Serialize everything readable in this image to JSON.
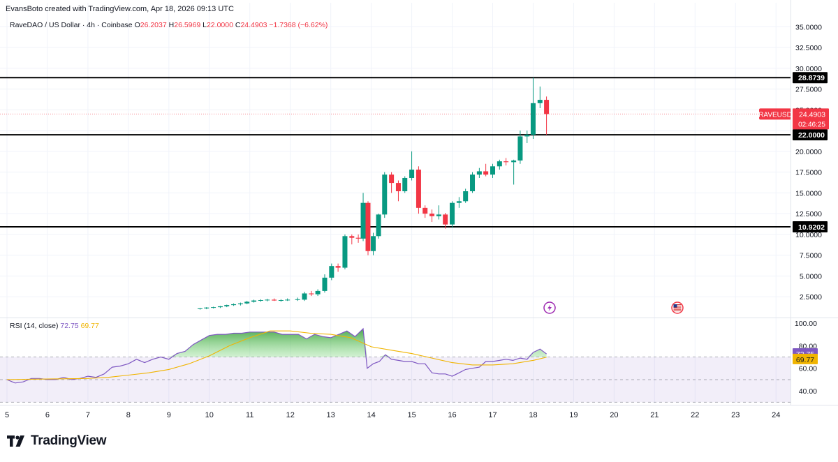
{
  "header": {
    "created_by": "EvansBoto created with TradingView.com, Apr 18, 2026 09:13 UTC"
  },
  "symbol": {
    "title": "RaveDAO / US Dollar · 4h · Coinbase",
    "o_label": "O",
    "o": "26.2037",
    "h_label": "H",
    "h": "26.5969",
    "l_label": "L",
    "l": "22.0000",
    "c_label": "C",
    "c": "24.4903",
    "change": "−1.7368 (−6.62%)"
  },
  "rsi": {
    "label": "RSI (14, close)",
    "value": "72.75",
    "ma_value": "69.77"
  },
  "colors": {
    "up": "#089981",
    "down": "#f23645",
    "rsi": "#7e57c2",
    "rsi_ma": "#f0b400",
    "level_line": "#000000",
    "badge": "#f23645"
  },
  "icons": {
    "events": [
      "lightning-event-icon",
      "us-flag-event-icon"
    ]
  },
  "footer": {
    "brand": "TradingView"
  },
  "chart_data": [
    {
      "type": "candlestick",
      "ylim": [
        0,
        36.2
      ],
      "y_ticks": [
        "2.5000",
        "5.0000",
        "7.5000",
        "10.0000",
        "12.5000",
        "15.0000",
        "17.5000",
        "20.0000",
        "22.5000",
        "25.0000",
        "27.5000",
        "30.0000",
        "32.5000",
        "35.0000"
      ],
      "x_ticks": [
        "5",
        "6",
        "7",
        "8",
        "9",
        "10",
        "11",
        "12",
        "13",
        "14",
        "15",
        "16",
        "17",
        "18",
        "19",
        "20",
        "21",
        "22",
        "23",
        "24"
      ],
      "xlim": [
        5,
        24.1
      ],
      "horizontal_levels": [
        {
          "value": 28.8739,
          "label": "28.8739"
        },
        {
          "value": 22.0,
          "label": "22.0000"
        },
        {
          "value": 10.9202,
          "label": "10.9202"
        }
      ],
      "last_price": {
        "symbol": "RAVEUSD",
        "price": "24.4903",
        "countdown": "02:46:25",
        "value": 24.4903
      },
      "candles": [
        {
          "x": 9.77,
          "o": 1.05,
          "h": 1.15,
          "l": 0.95,
          "c": 1.1
        },
        {
          "x": 9.93,
          "o": 1.1,
          "h": 1.25,
          "l": 1.0,
          "c": 1.2
        },
        {
          "x": 10.1,
          "o": 1.2,
          "h": 1.3,
          "l": 1.1,
          "c": 1.25
        },
        {
          "x": 10.27,
          "o": 1.25,
          "h": 1.4,
          "l": 1.15,
          "c": 1.35
        },
        {
          "x": 10.43,
          "o": 1.35,
          "h": 1.55,
          "l": 1.25,
          "c": 1.5
        },
        {
          "x": 10.6,
          "o": 1.5,
          "h": 1.7,
          "l": 1.4,
          "c": 1.6
        },
        {
          "x": 10.77,
          "o": 1.6,
          "h": 1.8,
          "l": 1.45,
          "c": 1.7
        },
        {
          "x": 10.93,
          "o": 1.7,
          "h": 2.0,
          "l": 1.6,
          "c": 1.9
        },
        {
          "x": 11.1,
          "o": 1.9,
          "h": 2.15,
          "l": 1.8,
          "c": 2.05
        },
        {
          "x": 11.27,
          "o": 2.05,
          "h": 2.2,
          "l": 1.9,
          "c": 2.1
        },
        {
          "x": 11.43,
          "o": 2.1,
          "h": 2.25,
          "l": 1.95,
          "c": 2.15
        },
        {
          "x": 11.6,
          "o": 2.15,
          "h": 2.3,
          "l": 2.0,
          "c": 2.05
        },
        {
          "x": 11.77,
          "o": 2.05,
          "h": 2.2,
          "l": 1.9,
          "c": 2.1
        },
        {
          "x": 11.93,
          "o": 2.1,
          "h": 2.3,
          "l": 2.0,
          "c": 2.15
        },
        {
          "x": 12.18,
          "o": 2.15,
          "h": 2.4,
          "l": 2.0,
          "c": 2.2
        },
        {
          "x": 12.35,
          "o": 2.15,
          "h": 3.1,
          "l": 2.0,
          "c": 2.9
        },
        {
          "x": 12.52,
          "o": 2.9,
          "h": 3.2,
          "l": 2.6,
          "c": 2.8
        },
        {
          "x": 12.68,
          "o": 2.8,
          "h": 3.4,
          "l": 2.6,
          "c": 3.2
        },
        {
          "x": 12.85,
          "o": 3.2,
          "h": 5.2,
          "l": 3.0,
          "c": 4.8
        },
        {
          "x": 13.02,
          "o": 4.8,
          "h": 6.5,
          "l": 4.5,
          "c": 6.2
        },
        {
          "x": 13.18,
          "o": 6.2,
          "h": 6.5,
          "l": 5.5,
          "c": 6.0
        },
        {
          "x": 13.35,
          "o": 6.0,
          "h": 10.0,
          "l": 5.8,
          "c": 9.8
        },
        {
          "x": 13.52,
          "o": 9.8,
          "h": 10.0,
          "l": 8.8,
          "c": 9.6
        },
        {
          "x": 13.68,
          "o": 9.6,
          "h": 10.0,
          "l": 9.0,
          "c": 9.5
        },
        {
          "x": 13.8,
          "o": 9.5,
          "h": 15.0,
          "l": 9.2,
          "c": 13.8
        },
        {
          "x": 13.92,
          "o": 13.8,
          "h": 14.0,
          "l": 7.5,
          "c": 8.0
        },
        {
          "x": 14.05,
          "o": 8.0,
          "h": 10.2,
          "l": 7.5,
          "c": 9.8
        },
        {
          "x": 14.18,
          "o": 9.8,
          "h": 12.5,
          "l": 9.5,
          "c": 12.4
        },
        {
          "x": 14.33,
          "o": 12.4,
          "h": 17.5,
          "l": 12.0,
          "c": 17.2
        },
        {
          "x": 14.5,
          "o": 17.2,
          "h": 17.5,
          "l": 15.0,
          "c": 16.2
        },
        {
          "x": 14.67,
          "o": 16.2,
          "h": 16.5,
          "l": 14.0,
          "c": 15.2
        },
        {
          "x": 14.83,
          "o": 15.2,
          "h": 17.0,
          "l": 15.0,
          "c": 16.8
        },
        {
          "x": 15.0,
          "o": 16.8,
          "h": 20.0,
          "l": 16.5,
          "c": 17.8
        },
        {
          "x": 15.17,
          "o": 17.8,
          "h": 18.2,
          "l": 12.5,
          "c": 13.2
        },
        {
          "x": 15.33,
          "o": 13.2,
          "h": 13.5,
          "l": 12.0,
          "c": 12.5
        },
        {
          "x": 15.5,
          "o": 12.5,
          "h": 13.0,
          "l": 11.5,
          "c": 12.2
        },
        {
          "x": 15.67,
          "o": 12.2,
          "h": 13.5,
          "l": 11.8,
          "c": 12.4
        },
        {
          "x": 15.83,
          "o": 12.4,
          "h": 12.6,
          "l": 10.7,
          "c": 11.2
        },
        {
          "x": 16.0,
          "o": 11.2,
          "h": 14.0,
          "l": 10.8,
          "c": 13.8
        },
        {
          "x": 16.17,
          "o": 13.8,
          "h": 14.5,
          "l": 13.2,
          "c": 14.0
        },
        {
          "x": 16.33,
          "o": 14.0,
          "h": 15.5,
          "l": 13.8,
          "c": 15.2
        },
        {
          "x": 16.5,
          "o": 15.2,
          "h": 17.5,
          "l": 15.0,
          "c": 17.2
        },
        {
          "x": 16.67,
          "o": 17.2,
          "h": 18.0,
          "l": 16.8,
          "c": 17.6
        },
        {
          "x": 16.83,
          "o": 17.6,
          "h": 18.5,
          "l": 17.0,
          "c": 17.2
        },
        {
          "x": 17.0,
          "o": 17.2,
          "h": 18.5,
          "l": 16.8,
          "c": 18.2
        },
        {
          "x": 17.17,
          "o": 18.2,
          "h": 19.0,
          "l": 17.8,
          "c": 18.8
        },
        {
          "x": 17.33,
          "o": 18.8,
          "h": 19.2,
          "l": 18.3,
          "c": 18.7
        },
        {
          "x": 17.52,
          "o": 18.7,
          "h": 19.0,
          "l": 16.0,
          "c": 18.9
        },
        {
          "x": 17.68,
          "o": 18.9,
          "h": 22.5,
          "l": 18.5,
          "c": 21.8
        },
        {
          "x": 17.85,
          "o": 21.8,
          "h": 22.5,
          "l": 21.0,
          "c": 22.0
        },
        {
          "x": 18.0,
          "o": 22.0,
          "h": 28.87,
          "l": 21.5,
          "c": 25.8
        },
        {
          "x": 18.17,
          "o": 25.8,
          "h": 27.8,
          "l": 25.2,
          "c": 26.2
        },
        {
          "x": 18.33,
          "o": 26.2,
          "h": 26.6,
          "l": 22.0,
          "c": 24.49
        }
      ]
    },
    {
      "type": "line",
      "title": "RSI (14, close)",
      "ylim": [
        29,
        103
      ],
      "y_ticks": [
        "40.00",
        "60.00",
        "80.00",
        "100.00"
      ],
      "band": [
        30,
        70
      ],
      "midline": 50,
      "overbought_fill_above": 70,
      "series": [
        {
          "name": "RSI",
          "x": [
            5.0,
            5.2,
            5.4,
            5.6,
            5.8,
            6.0,
            6.2,
            6.4,
            6.6,
            6.8,
            7.0,
            7.2,
            7.4,
            7.6,
            7.8,
            8.0,
            8.2,
            8.4,
            8.6,
            8.8,
            9.0,
            9.2,
            9.4,
            9.6,
            9.8,
            10.0,
            10.2,
            10.4,
            10.6,
            10.8,
            11.0,
            11.2,
            11.4,
            11.6,
            11.8,
            12.0,
            12.2,
            12.4,
            12.6,
            12.8,
            13.0,
            13.2,
            13.4,
            13.6,
            13.8,
            13.9,
            14.05,
            14.2,
            14.35,
            14.5,
            14.67,
            14.83,
            15.0,
            15.17,
            15.33,
            15.5,
            15.67,
            15.83,
            16.0,
            16.17,
            16.33,
            16.5,
            16.67,
            16.83,
            17.0,
            17.17,
            17.33,
            17.5,
            17.68,
            17.85,
            18.0,
            18.17,
            18.33
          ],
          "values": [
            50,
            47,
            48,
            51,
            51,
            50,
            50,
            52,
            50,
            51,
            53,
            52,
            55,
            61,
            62,
            64,
            68,
            65,
            68,
            70,
            68,
            73,
            75,
            81,
            85,
            89,
            90,
            90,
            91,
            91,
            92,
            92,
            92,
            92,
            90,
            90,
            90,
            86,
            90,
            88,
            87,
            90,
            93,
            88,
            95,
            60,
            64,
            66,
            72,
            68,
            67,
            66,
            66,
            64,
            64,
            56,
            55,
            55,
            53,
            56,
            59,
            60,
            61,
            66,
            66,
            67,
            68,
            67,
            69,
            68,
            74,
            77,
            72.75
          ]
        },
        {
          "name": "RSI MA",
          "x": [
            5.0,
            6.0,
            7.0,
            7.5,
            8.0,
            8.5,
            9.0,
            9.5,
            10.0,
            10.5,
            11.0,
            11.5,
            12.0,
            12.5,
            13.0,
            13.5,
            14.0,
            14.5,
            15.0,
            15.5,
            16.0,
            16.5,
            17.0,
            17.5,
            18.0,
            18.33
          ],
          "values": [
            50,
            50.5,
            51,
            52,
            54,
            56,
            59,
            64,
            71,
            80,
            87,
            93,
            93,
            91,
            90,
            87,
            79,
            76,
            73,
            69,
            65,
            63,
            63,
            64,
            67,
            69.77
          ]
        }
      ]
    }
  ]
}
